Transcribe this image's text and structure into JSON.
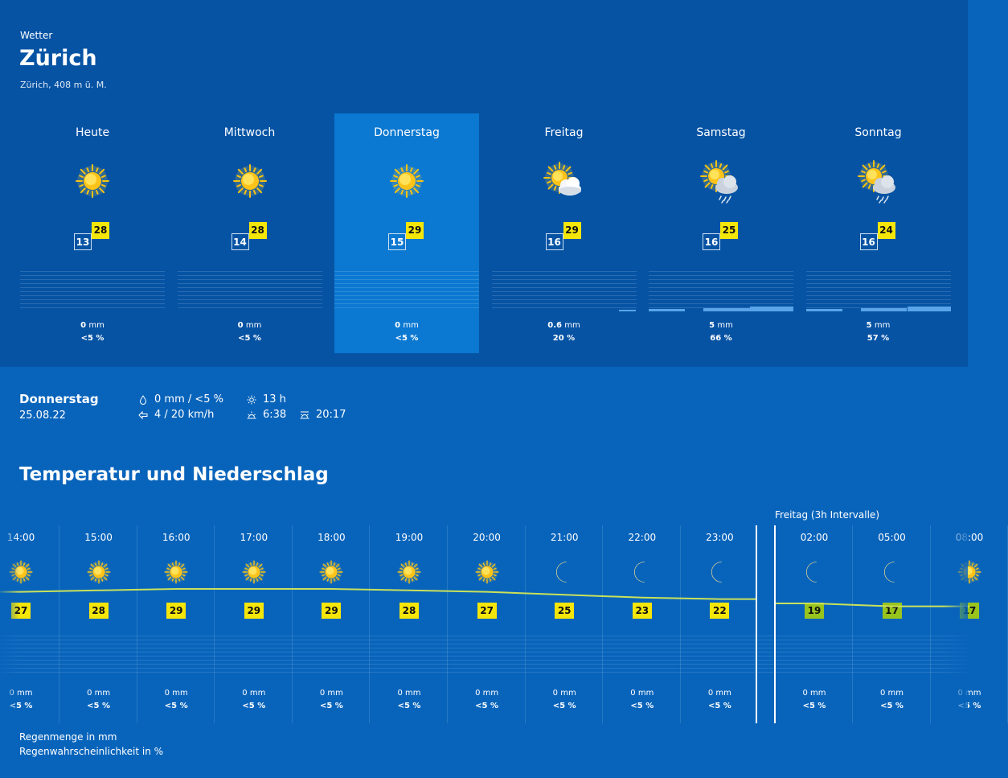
{
  "header": {
    "kicker": "Wetter",
    "city": "Zürich",
    "location": "Zürich, 408 m ü. M."
  },
  "colors": {
    "header_bg": "#0653a4",
    "page_bg": "#0864bb",
    "selected_day": "#0b78d1",
    "temp_max": "#f5e60a",
    "temp_night": "#98c41e",
    "temp_line": "#c9e15a"
  },
  "days": [
    {
      "name": "Heute",
      "icon": "sun-icon",
      "tmin": "13",
      "tmax": "28",
      "mm": "0",
      "unit": "mm",
      "pct": "<5 %",
      "precip_level": 0
    },
    {
      "name": "Mittwoch",
      "icon": "sun-icon",
      "tmin": "14",
      "tmax": "28",
      "mm": "0",
      "unit": "mm",
      "pct": "<5 %",
      "precip_level": 0
    },
    {
      "name": "Donnerstag",
      "icon": "sun-icon",
      "tmin": "15",
      "tmax": "29",
      "mm": "0",
      "unit": "mm",
      "pct": "<5 %",
      "precip_level": 0,
      "selected": true
    },
    {
      "name": "Freitag",
      "icon": "sun-cloud-icon",
      "tmin": "16",
      "tmax": "29",
      "mm": "0.6",
      "unit": "mm",
      "pct": "20 %",
      "precip_level": 0.6
    },
    {
      "name": "Samstag",
      "icon": "sun-cloud-rain-icon",
      "tmin": "16",
      "tmax": "25",
      "mm": "5",
      "unit": "mm",
      "pct": "66 %",
      "precip_level": 5
    },
    {
      "name": "Sonntag",
      "icon": "sun-cloud-rain-icon",
      "tmin": "16",
      "tmax": "24",
      "mm": "5",
      "unit": "mm",
      "pct": "57 %",
      "precip_level": 5
    }
  ],
  "detail": {
    "day": "Donnerstag",
    "date": "25.08.22",
    "precip": "0 mm / <5 %",
    "wind": "4 / 20 km/h",
    "sun_hours": "13 h",
    "sunrise": "6:38",
    "sunset": "20:17",
    "icons": {
      "precip": "drop-icon",
      "wind": "wind-icon",
      "sun_hours": "sun-small-icon",
      "sunrise": "sunrise-icon",
      "sunset": "sunset-icon"
    }
  },
  "section_title": "Temperatur und Niederschlag",
  "interval_label": "Freitag (3h Intervalle)",
  "hours": [
    {
      "time": "14:00",
      "icon": "sun-icon",
      "temp": 27,
      "mm": "0 mm",
      "pct": "<5 %"
    },
    {
      "time": "15:00",
      "icon": "sun-icon",
      "temp": 28,
      "mm": "0 mm",
      "pct": "<5 %"
    },
    {
      "time": "16:00",
      "icon": "sun-icon",
      "temp": 29,
      "mm": "0 mm",
      "pct": "<5 %"
    },
    {
      "time": "17:00",
      "icon": "sun-icon",
      "temp": 29,
      "mm": "0 mm",
      "pct": "<5 %"
    },
    {
      "time": "18:00",
      "icon": "sun-icon",
      "temp": 29,
      "mm": "0 mm",
      "pct": "<5 %"
    },
    {
      "time": "19:00",
      "icon": "sun-icon",
      "temp": 28,
      "mm": "0 mm",
      "pct": "<5 %"
    },
    {
      "time": "20:00",
      "icon": "sun-icon",
      "temp": 27,
      "mm": "0 mm",
      "pct": "<5 %"
    },
    {
      "time": "21:00",
      "icon": "moon-icon",
      "temp": 25,
      "mm": "0 mm",
      "pct": "<5 %"
    },
    {
      "time": "22:00",
      "icon": "moon-icon",
      "temp": 23,
      "mm": "0 mm",
      "pct": "<5 %"
    },
    {
      "time": "23:00",
      "icon": "moon-icon",
      "temp": 22,
      "mm": "0 mm",
      "pct": "<5 %"
    },
    {
      "time": "02:00",
      "icon": "moon-icon",
      "temp": 19,
      "mm": "0 mm",
      "pct": "<5 %",
      "night": true
    },
    {
      "time": "05:00",
      "icon": "moon-icon",
      "temp": 17,
      "mm": "0 mm",
      "pct": "<5 %",
      "night": true
    },
    {
      "time": "08:00",
      "icon": "sun-icon",
      "temp": 17,
      "mm": "0 mm",
      "pct": "<5 %",
      "night": true
    }
  ],
  "legend": {
    "amount": "Regenmenge in mm",
    "probability": "Regenwahrscheinlichkeit in %"
  }
}
